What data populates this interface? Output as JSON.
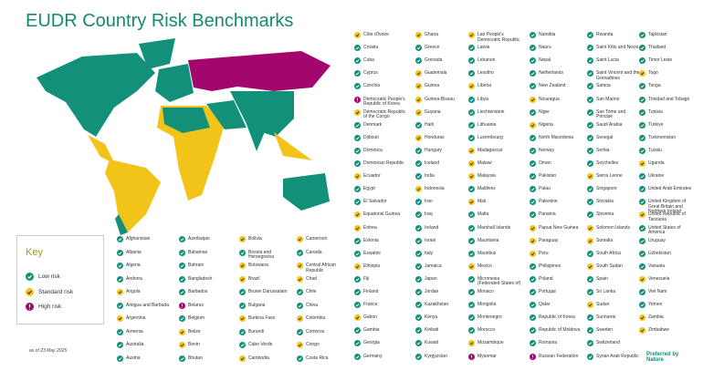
{
  "header": {
    "title": "EUDR Country Risk Benchmarks"
  },
  "key": {
    "title": "Key",
    "items": [
      {
        "label": "Low risk",
        "color": "#13907a"
      },
      {
        "label": "Standard risk",
        "color": "#f2c318"
      },
      {
        "label": "High risk",
        "color": "#a3076d"
      }
    ]
  },
  "note": "as of 23 May 2025",
  "logo": "Preferred by Nature",
  "country_columns": [
    [
      {
        "name": "Afghanistan",
        "risk": "Low risk"
      },
      {
        "name": "Albania",
        "risk": "Low risk"
      },
      {
        "name": "Algeria",
        "risk": "Low risk"
      },
      {
        "name": "Andorra",
        "risk": "Low risk"
      },
      {
        "name": "Angola",
        "risk": "Standard risk"
      },
      {
        "name": "Antigua and Barbuda",
        "risk": "Low risk"
      },
      {
        "name": "Argentina",
        "risk": "Standard risk"
      },
      {
        "name": "Armenia",
        "risk": "Low risk"
      },
      {
        "name": "Australia",
        "risk": "Low risk"
      },
      {
        "name": "Austria",
        "risk": "Low risk"
      }
    ],
    [
      {
        "name": "Azerbaijan",
        "risk": "Low risk"
      },
      {
        "name": "Bahamas",
        "risk": "Low risk"
      },
      {
        "name": "Bahrain",
        "risk": "Low risk"
      },
      {
        "name": "Bangladesh",
        "risk": "Low risk"
      },
      {
        "name": "Barbados",
        "risk": "Low risk"
      },
      {
        "name": "Belarus",
        "risk": "High risk"
      },
      {
        "name": "Belgium",
        "risk": "Low risk"
      },
      {
        "name": "Belize",
        "risk": "Standard risk"
      },
      {
        "name": "Benin",
        "risk": "Standard risk"
      },
      {
        "name": "Bhutan",
        "risk": "Low risk"
      }
    ],
    [
      {
        "name": "Bolivia",
        "risk": "Standard risk"
      },
      {
        "name": "Bosnia and Herzegovina",
        "risk": "Low risk"
      },
      {
        "name": "Botswana",
        "risk": "Standard risk"
      },
      {
        "name": "Brazil",
        "risk": "Standard risk"
      },
      {
        "name": "Brunei Darussalam",
        "risk": "Low risk"
      },
      {
        "name": "Bulgaria",
        "risk": "Low risk"
      },
      {
        "name": "Burkina Faso",
        "risk": "Standard risk"
      },
      {
        "name": "Burundi",
        "risk": "Low risk"
      },
      {
        "name": "Cabo Verde",
        "risk": "Low risk"
      },
      {
        "name": "Cambodia",
        "risk": "Standard risk"
      }
    ],
    [
      {
        "name": "Cameroon",
        "risk": "Standard risk"
      },
      {
        "name": "Canada",
        "risk": "Low risk"
      },
      {
        "name": "Central African Republic",
        "risk": "Standard risk"
      },
      {
        "name": "Chad",
        "risk": "Standard risk"
      },
      {
        "name": "Chile",
        "risk": "Low risk"
      },
      {
        "name": "China",
        "risk": "Low risk"
      },
      {
        "name": "Colombia",
        "risk": "Standard risk"
      },
      {
        "name": "Comoros",
        "risk": "Low risk"
      },
      {
        "name": "Congo",
        "risk": "Standard risk"
      },
      {
        "name": "Costa Rica",
        "risk": "Low risk"
      }
    ],
    [
      {
        "name": "Côte d'Ivoire",
        "risk": "Standard risk"
      },
      {
        "name": "Croatia",
        "risk": "Low risk"
      },
      {
        "name": "Cuba",
        "risk": "Low risk"
      },
      {
        "name": "Cyprus",
        "risk": "Low risk"
      },
      {
        "name": "Czechia",
        "risk": "Low risk"
      },
      {
        "name": "Democratic People's Republic of Korea",
        "risk": "High risk"
      },
      {
        "name": "Democratic Republic of the Congo",
        "risk": "Standard risk"
      },
      {
        "name": "Denmark",
        "risk": "Low risk"
      },
      {
        "name": "Djibouti",
        "risk": "Low risk"
      },
      {
        "name": "Dominica",
        "risk": "Low risk"
      },
      {
        "name": "Dominican Republic",
        "risk": "Low risk"
      },
      {
        "name": "Ecuador",
        "risk": "Standard risk"
      },
      {
        "name": "Egypt",
        "risk": "Low risk"
      },
      {
        "name": "El Salvador",
        "risk": "Low risk"
      },
      {
        "name": "Equatorial Guinea",
        "risk": "Standard risk"
      },
      {
        "name": "Eritrea",
        "risk": "Standard risk"
      },
      {
        "name": "Estonia",
        "risk": "Low risk"
      },
      {
        "name": "Eswatini",
        "risk": "Low risk"
      },
      {
        "name": "Ethiopia",
        "risk": "Standard risk"
      },
      {
        "name": "Fiji",
        "risk": "Low risk"
      },
      {
        "name": "Finland",
        "risk": "Low risk"
      },
      {
        "name": "France",
        "risk": "Low risk"
      },
      {
        "name": "Gabon",
        "risk": "Standard risk"
      },
      {
        "name": "Gambia",
        "risk": "Low risk"
      },
      {
        "name": "Georgia",
        "risk": "Low risk"
      },
      {
        "name": "Germany",
        "risk": "Low risk"
      }
    ],
    [
      {
        "name": "Ghana",
        "risk": "Standard risk"
      },
      {
        "name": "Greece",
        "risk": "Low risk"
      },
      {
        "name": "Grenada",
        "risk": "Low risk"
      },
      {
        "name": "Guatemala",
        "risk": "Standard risk"
      },
      {
        "name": "Guinea",
        "risk": "Standard risk"
      },
      {
        "name": "Guinea-Bissau",
        "risk": "Standard risk"
      },
      {
        "name": "Guyana",
        "risk": "Standard risk"
      },
      {
        "name": "Haiti",
        "risk": "Low risk"
      },
      {
        "name": "Honduras",
        "risk": "Standard risk"
      },
      {
        "name": "Hungary",
        "risk": "Low risk"
      },
      {
        "name": "Iceland",
        "risk": "Low risk"
      },
      {
        "name": "India",
        "risk": "Low risk"
      },
      {
        "name": "Indonesia",
        "risk": "Standard risk"
      },
      {
        "name": "Iran",
        "risk": "Low risk"
      },
      {
        "name": "Iraq",
        "risk": "Low risk"
      },
      {
        "name": "Ireland",
        "risk": "Low risk"
      },
      {
        "name": "Israel",
        "risk": "Low risk"
      },
      {
        "name": "Italy",
        "risk": "Low risk"
      },
      {
        "name": "Jamaica",
        "risk": "Low risk"
      },
      {
        "name": "Japan",
        "risk": "Low risk"
      },
      {
        "name": "Jordan",
        "risk": "Low risk"
      },
      {
        "name": "Kazakhstan",
        "risk": "Low risk"
      },
      {
        "name": "Kenya",
        "risk": "Low risk"
      },
      {
        "name": "Kiribati",
        "risk": "Low risk"
      },
      {
        "name": "Kuwait",
        "risk": "Low risk"
      },
      {
        "name": "Kyrgyzstan",
        "risk": "Low risk"
      }
    ],
    [
      {
        "name": "Lao People's Democratic Republic",
        "risk": "Standard risk"
      },
      {
        "name": "Latvia",
        "risk": "Low risk"
      },
      {
        "name": "Lebanon",
        "risk": "Low risk"
      },
      {
        "name": "Lesotho",
        "risk": "Low risk"
      },
      {
        "name": "Liberia",
        "risk": "Standard risk"
      },
      {
        "name": "Libya",
        "risk": "Low risk"
      },
      {
        "name": "Liechtenstein",
        "risk": "Low risk"
      },
      {
        "name": "Lithuania",
        "risk": "Low risk"
      },
      {
        "name": "Luxembourg",
        "risk": "Low risk"
      },
      {
        "name": "Madagascar",
        "risk": "Standard risk"
      },
      {
        "name": "Malawi",
        "risk": "Standard risk"
      },
      {
        "name": "Malaysia",
        "risk": "Standard risk"
      },
      {
        "name": "Maldives",
        "risk": "Low risk"
      },
      {
        "name": "Mali",
        "risk": "Standard risk"
      },
      {
        "name": "Malta",
        "risk": "Low risk"
      },
      {
        "name": "Marshall Islands",
        "risk": "Low risk"
      },
      {
        "name": "Mauritania",
        "risk": "Low risk"
      },
      {
        "name": "Mauritius",
        "risk": "Low risk"
      },
      {
        "name": "Mexico",
        "risk": "Standard risk"
      },
      {
        "name": "Micronesia (Federated States of)",
        "risk": "Low risk"
      },
      {
        "name": "Monaco",
        "risk": "Low risk"
      },
      {
        "name": "Mongolia",
        "risk": "Low risk"
      },
      {
        "name": "Montenegro",
        "risk": "Low risk"
      },
      {
        "name": "Morocco",
        "risk": "Low risk"
      },
      {
        "name": "Mozambique",
        "risk": "Standard risk"
      },
      {
        "name": "Myanmar",
        "risk": "High risk"
      }
    ],
    [
      {
        "name": "Namibia",
        "risk": "Low risk"
      },
      {
        "name": "Nauru",
        "risk": "Low risk"
      },
      {
        "name": "Nepal",
        "risk": "Low risk"
      },
      {
        "name": "Netherlands",
        "risk": "Low risk"
      },
      {
        "name": "New Zealand",
        "risk": "Low risk"
      },
      {
        "name": "Nicaragua",
        "risk": "Standard risk"
      },
      {
        "name": "Niger",
        "risk": "Low risk"
      },
      {
        "name": "Nigeria",
        "risk": "Standard risk"
      },
      {
        "name": "North Macedonia",
        "risk": "Low risk"
      },
      {
        "name": "Norway",
        "risk": "Low risk"
      },
      {
        "name": "Oman",
        "risk": "Low risk"
      },
      {
        "name": "Pakistan",
        "risk": "Low risk"
      },
      {
        "name": "Palau",
        "risk": "Low risk"
      },
      {
        "name": "Palestine",
        "risk": "Low risk"
      },
      {
        "name": "Panama",
        "risk": "Low risk"
      },
      {
        "name": "Papua New Guinea",
        "risk": "Standard risk"
      },
      {
        "name": "Paraguay",
        "risk": "Standard risk"
      },
      {
        "name": "Peru",
        "risk": "Standard risk"
      },
      {
        "name": "Philippines",
        "risk": "Low risk"
      },
      {
        "name": "Poland",
        "risk": "Low risk"
      },
      {
        "name": "Portugal",
        "risk": "Low risk"
      },
      {
        "name": "Qatar",
        "risk": "Low risk"
      },
      {
        "name": "Republic of Korea",
        "risk": "Low risk"
      },
      {
        "name": "Republic of Moldova",
        "risk": "Low risk"
      },
      {
        "name": "Romania",
        "risk": "Low risk"
      },
      {
        "name": "Russian Federation",
        "risk": "High risk"
      }
    ],
    [
      {
        "name": "Rwanda",
        "risk": "Low risk"
      },
      {
        "name": "Saint Kitts and Nevis",
        "risk": "Low risk"
      },
      {
        "name": "Saint Lucia",
        "risk": "Low risk"
      },
      {
        "name": "Saint Vincent and the Grenadines",
        "risk": "Low risk"
      },
      {
        "name": "Samoa",
        "risk": "Low risk"
      },
      {
        "name": "San Marino",
        "risk": "Low risk"
      },
      {
        "name": "Sao Tome and Principe",
        "risk": "Low risk"
      },
      {
        "name": "Saudi Arabia",
        "risk": "Low risk"
      },
      {
        "name": "Senegal",
        "risk": "Low risk"
      },
      {
        "name": "Serbia",
        "risk": "Low risk"
      },
      {
        "name": "Seychelles",
        "risk": "Low risk"
      },
      {
        "name": "Sierra Leone",
        "risk": "Standard risk"
      },
      {
        "name": "Singapore",
        "risk": "Low risk"
      },
      {
        "name": "Slovakia",
        "risk": "Low risk"
      },
      {
        "name": "Slovenia",
        "risk": "Low risk"
      },
      {
        "name": "Solomon Islands",
        "risk": "Standard risk"
      },
      {
        "name": "Somalia",
        "risk": "Standard risk"
      },
      {
        "name": "South Africa",
        "risk": "Low risk"
      },
      {
        "name": "South Sudan",
        "risk": "Standard risk"
      },
      {
        "name": "Spain",
        "risk": "Low risk"
      },
      {
        "name": "Sri Lanka",
        "risk": "Low risk"
      },
      {
        "name": "Sudan",
        "risk": "Standard risk"
      },
      {
        "name": "Suriname",
        "risk": "Low risk"
      },
      {
        "name": "Sweden",
        "risk": "Low risk"
      },
      {
        "name": "Switzerland",
        "risk": "Low risk"
      },
      {
        "name": "Syrian Arab Republic",
        "risk": "Low risk"
      }
    ],
    [
      {
        "name": "Tajikistan",
        "risk": "Low risk"
      },
      {
        "name": "Thailand",
        "risk": "Low risk"
      },
      {
        "name": "Timor Leste",
        "risk": "Low risk"
      },
      {
        "name": "Togo",
        "risk": "Standard risk"
      },
      {
        "name": "Tonga",
        "risk": "Low risk"
      },
      {
        "name": "Trinidad and Tobago",
        "risk": "Low risk"
      },
      {
        "name": "Tunisia",
        "risk": "Low risk"
      },
      {
        "name": "Türkiye",
        "risk": "Low risk"
      },
      {
        "name": "Turkmenistan",
        "risk": "Low risk"
      },
      {
        "name": "Tuvalu",
        "risk": "Low risk"
      },
      {
        "name": "Uganda",
        "risk": "Standard risk"
      },
      {
        "name": "Ukraine",
        "risk": "Low risk"
      },
      {
        "name": "United Arab Emirates",
        "risk": "Low risk"
      },
      {
        "name": "United Kingdom of Great Britain and Northern Ireland",
        "risk": "Low risk"
      },
      {
        "name": "United Republic of Tanzania",
        "risk": "Standard risk"
      },
      {
        "name": "United States of America",
        "risk": "Low risk"
      },
      {
        "name": "Uruguay",
        "risk": "Low risk"
      },
      {
        "name": "Uzbekistan",
        "risk": "Low risk"
      },
      {
        "name": "Vanuatu",
        "risk": "Low risk"
      },
      {
        "name": "Venezuela",
        "risk": "Standard risk"
      },
      {
        "name": "Viet Nam",
        "risk": "Low risk"
      },
      {
        "name": "Yemen",
        "risk": "Low risk"
      },
      {
        "name": "Zambia",
        "risk": "Standard risk"
      },
      {
        "name": "Zimbabwe",
        "risk": "Standard risk"
      }
    ]
  ]
}
